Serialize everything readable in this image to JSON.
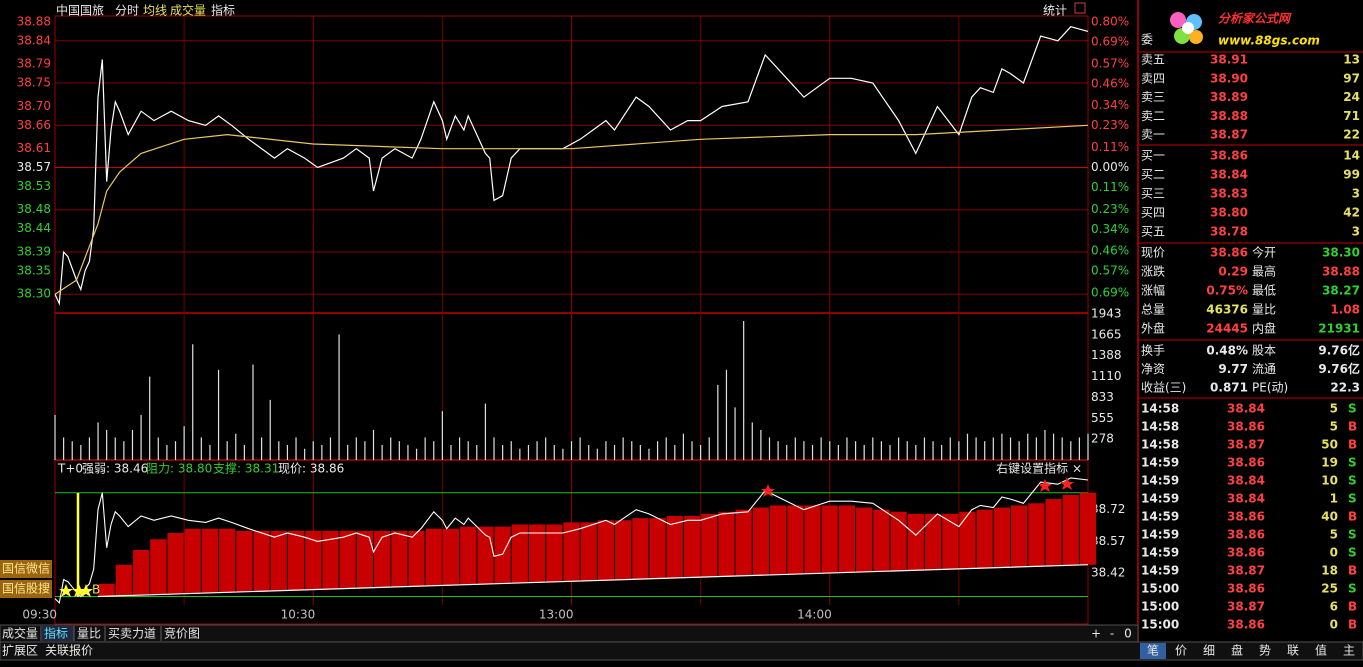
{
  "header": {
    "stats": "统计"
  },
  "chart_data": [
    {
      "type": "line",
      "title": "中国国旅",
      "xlim": [
        0,
        240
      ],
      "xticks": [
        {
          "value": 0,
          "label": "09:30"
        },
        {
          "value": 60,
          "label": "10:30"
        },
        {
          "value": 120,
          "label": "13:00"
        },
        {
          "value": 180,
          "label": "14:00"
        }
      ],
      "ylim": [
        38.26,
        38.88
      ],
      "yticks": [
        38.88,
        38.84,
        38.79,
        38.75,
        {
          "value": 38.7,
          "label": "38.70"
        },
        38.66,
        38.61,
        38.57,
        38.53,
        38.48,
        38.44,
        38.39,
        38.35,
        {
          "value": 38.3,
          "label": "38.30"
        }
      ],
      "y2lim": [
        -0.8,
        0.8
      ],
      "y2ticks": [
        {
          "value": 0.8,
          "label": "0.80%"
        },
        {
          "value": 0.69,
          "label": "0.69%"
        },
        {
          "value": 0.57,
          "label": "0.57%"
        },
        {
          "value": 0.46,
          "label": "0.46%"
        },
        {
          "value": 0.34,
          "label": "0.34%"
        },
        {
          "value": 0.23,
          "label": "0.23%"
        },
        {
          "value": 0.11,
          "label": "0.11%"
        },
        {
          "value": 0,
          "label": "0.00%"
        },
        {
          "value": -0.11,
          "label": "0.11%"
        },
        {
          "value": -0.23,
          "label": "0.23%"
        },
        {
          "value": -0.34,
          "label": "0.34%"
        },
        {
          "value": -0.46,
          "label": "0.46%"
        },
        {
          "value": -0.57,
          "label": "0.57%"
        },
        {
          "value": -0.69,
          "label": "0.69%"
        }
      ],
      "grid": true,
      "series": [
        {
          "name": "分时",
          "color": "#ffffff",
          "x": [
            0,
            1,
            2,
            3,
            5,
            6,
            7,
            8,
            9,
            10,
            11,
            12,
            13,
            14,
            15,
            17,
            20,
            23,
            27,
            31,
            35,
            38,
            41,
            45,
            51,
            54,
            58,
            61,
            67,
            70,
            73,
            74,
            76,
            79,
            83,
            85,
            88,
            90,
            91,
            93,
            95,
            96,
            100,
            101,
            102,
            104,
            106,
            108,
            115,
            118,
            122,
            125,
            128,
            130,
            135,
            138,
            143,
            147,
            150,
            155,
            161,
            165,
            170,
            174,
            177,
            180,
            185,
            190,
            196,
            200,
            205,
            210,
            213,
            215,
            218,
            220,
            222,
            225,
            229,
            233,
            236,
            240
          ],
          "values": [
            38.3,
            38.28,
            38.39,
            38.38,
            38.33,
            38.31,
            38.35,
            38.37,
            38.44,
            38.72,
            38.8,
            38.54,
            38.65,
            38.71,
            38.69,
            38.64,
            38.69,
            38.67,
            38.69,
            38.67,
            38.66,
            38.68,
            38.66,
            38.63,
            38.59,
            38.61,
            38.59,
            38.57,
            38.59,
            38.61,
            38.59,
            38.52,
            38.59,
            38.61,
            38.59,
            38.63,
            38.71,
            38.67,
            38.63,
            38.68,
            38.65,
            38.68,
            38.6,
            38.59,
            38.5,
            38.51,
            38.59,
            38.61,
            38.61,
            38.61,
            38.63,
            38.65,
            38.67,
            38.65,
            38.72,
            38.7,
            38.65,
            38.67,
            38.67,
            38.7,
            38.71,
            38.81,
            38.76,
            38.72,
            38.74,
            38.76,
            38.76,
            38.75,
            38.67,
            38.6,
            38.7,
            38.64,
            38.72,
            38.74,
            38.73,
            38.78,
            38.77,
            38.75,
            38.85,
            38.84,
            38.87,
            38.86
          ]
        },
        {
          "name": "均线",
          "color": "#e8c860",
          "x": [
            0,
            5,
            10,
            12,
            15,
            20,
            30,
            40,
            60,
            90,
            120,
            150,
            180,
            200,
            220,
            240
          ],
          "values": [
            38.3,
            38.33,
            38.45,
            38.52,
            38.56,
            38.6,
            38.63,
            38.64,
            38.62,
            38.61,
            38.61,
            38.63,
            38.64,
            38.64,
            38.65,
            38.66
          ]
        }
      ]
    },
    {
      "type": "bar",
      "title": "成交量",
      "color": "#e0e0e0",
      "xlim": [
        0,
        240
      ],
      "ylim": [
        0,
        1943
      ],
      "yticks": [
        1943,
        1665,
        1388,
        1110,
        833,
        555,
        278
      ],
      "x": [
        0,
        2,
        4,
        6,
        8,
        10,
        12,
        14,
        16,
        18,
        20,
        22,
        24,
        26,
        28,
        30,
        32,
        34,
        36,
        38,
        40,
        42,
        44,
        46,
        48,
        50,
        52,
        54,
        56,
        58,
        60,
        62,
        64,
        66,
        68,
        70,
        72,
        74,
        76,
        78,
        80,
        82,
        84,
        86,
        88,
        90,
        92,
        94,
        96,
        98,
        100,
        102,
        104,
        106,
        108,
        110,
        112,
        114,
        116,
        118,
        120,
        122,
        124,
        126,
        128,
        130,
        132,
        134,
        136,
        138,
        140,
        142,
        144,
        146,
        148,
        150,
        152,
        154,
        156,
        158,
        160,
        162,
        164,
        166,
        168,
        170,
        172,
        174,
        176,
        178,
        180,
        182,
        184,
        186,
        188,
        190,
        192,
        194,
        196,
        198,
        200,
        202,
        204,
        206,
        208,
        210,
        212,
        214,
        216,
        218,
        220,
        222,
        224,
        226,
        228,
        230,
        232,
        234,
        236,
        238,
        240
      ],
      "values": [
        600,
        300,
        250,
        200,
        300,
        500,
        400,
        300,
        250,
        400,
        600,
        1110,
        300,
        200,
        250,
        450,
        1540,
        300,
        200,
        1200,
        250,
        350,
        200,
        1270,
        300,
        800,
        250,
        200,
        300,
        150,
        250,
        200,
        300,
        1670,
        200,
        300,
        250,
        400,
        200,
        300,
        250,
        200,
        150,
        300,
        250,
        650,
        200,
        300,
        250,
        200,
        750,
        300,
        200,
        250,
        150,
        200,
        250,
        300,
        200,
        150,
        250,
        300,
        200,
        150,
        250,
        200,
        300,
        250,
        200,
        150,
        250,
        300,
        200,
        350,
        250,
        200,
        300,
        1000,
        1200,
        700,
        1850,
        500,
        400,
        300,
        250,
        200,
        300,
        250,
        200,
        300,
        250,
        200,
        300,
        250,
        200,
        300,
        250,
        200,
        300,
        250,
        200,
        300,
        250,
        200,
        300,
        250,
        350,
        300,
        250,
        300,
        350,
        300,
        250,
        350,
        300,
        400,
        350,
        300,
        250,
        300,
        350
      ]
    },
    {
      "type": "bar",
      "title": "指标",
      "prefix": "T+0",
      "strength": {
        "value": 38.46,
        "label": "强弱: 38.46"
      },
      "resistance": {
        "value": 38.8,
        "label": "阻力: 38.80"
      },
      "support": {
        "value": 38.31,
        "label": "支撑: 38.31"
      },
      "current": {
        "value": 38.86,
        "label": "现价: 38.86"
      },
      "hint": "右键设置指标 ×",
      "marker": "B",
      "xlim": [
        0,
        240
      ],
      "ylim": [
        38.27,
        38.945
      ],
      "yticks": [
        38.72,
        38.57,
        38.42
      ],
      "series": [
        {
          "color": "#c80000",
          "x": [
            12,
            16,
            20,
            24,
            28,
            32,
            36,
            40,
            44,
            48,
            52,
            56,
            60,
            64,
            68,
            72,
            76,
            80,
            84,
            88,
            92,
            96,
            100,
            104,
            108,
            112,
            116,
            120,
            124,
            128,
            132,
            136,
            140,
            144,
            148,
            152,
            156,
            160,
            164,
            168,
            172,
            176,
            180,
            184,
            188,
            192,
            196,
            200,
            204,
            208,
            212,
            216,
            220,
            224,
            228,
            232,
            236,
            240
          ],
          "values": [
            38.37,
            38.46,
            38.53,
            38.58,
            38.61,
            38.63,
            38.63,
            38.63,
            38.62,
            38.62,
            38.62,
            38.62,
            38.62,
            38.62,
            38.62,
            38.62,
            38.62,
            38.62,
            38.62,
            38.63,
            38.63,
            38.64,
            38.64,
            38.64,
            38.65,
            38.65,
            38.65,
            38.66,
            38.66,
            38.67,
            38.67,
            38.68,
            38.68,
            38.69,
            38.69,
            38.7,
            38.71,
            38.72,
            38.73,
            38.74,
            38.74,
            38.74,
            38.74,
            38.74,
            38.73,
            38.72,
            38.71,
            38.7,
            38.7,
            38.7,
            38.71,
            38.72,
            38.73,
            38.74,
            38.75,
            38.77,
            38.79,
            38.8
          ]
        },
        {
          "color": "#ffffff",
          "x": [
            10,
            240
          ],
          "values": [
            38.31,
            38.46
          ]
        }
      ]
    }
  ],
  "left_buttons": [
    "国信微信",
    "国信股搜"
  ],
  "bottom_tabs": [
    "成交量",
    "指标",
    "量比",
    "买卖力道",
    "竞价图"
  ],
  "bottom_controls": [
    "+",
    "-",
    "0"
  ],
  "bottom_tabs2": [
    "扩展区",
    "关联报价"
  ],
  "logo": {
    "title": "分析家公式网",
    "url": "www.88gs.com"
  },
  "order_book": {
    "label": "委",
    "asks": [
      [
        "卖五",
        "38.91",
        "13"
      ],
      [
        "卖四",
        "38.90",
        "97"
      ],
      [
        "卖三",
        "38.89",
        "24"
      ],
      [
        "卖二",
        "38.88",
        "71"
      ],
      [
        "卖一",
        "38.87",
        "22"
      ]
    ],
    "bids": [
      [
        "买一",
        "38.86",
        "14"
      ],
      [
        "买二",
        "38.84",
        "99"
      ],
      [
        "买三",
        "38.83",
        "3"
      ],
      [
        "买四",
        "38.80",
        "42"
      ],
      [
        "买五",
        "38.78",
        "3"
      ]
    ]
  },
  "quote": [
    [
      "现价",
      "38.86",
      "今开",
      "38.30"
    ],
    [
      "涨跌",
      "0.29",
      "最高",
      "38.88"
    ],
    [
      "涨幅",
      "0.75%",
      "最低",
      "38.27"
    ],
    [
      "总量",
      "46376",
      "量比",
      "1.08"
    ],
    [
      "外盘",
      "24445",
      "内盘",
      "21931"
    ]
  ],
  "finance": [
    [
      "换手",
      "0.48%",
      "股本",
      "9.76亿"
    ],
    [
      "净资",
      "9.77",
      "流通",
      "9.76亿"
    ],
    [
      "收益(三)",
      "0.871",
      "PE(动)",
      "22.3"
    ]
  ],
  "ticks": [
    [
      "14:58",
      "38.84",
      "5",
      "S"
    ],
    [
      "14:58",
      "38.86",
      "5",
      "B"
    ],
    [
      "14:58",
      "38.87",
      "50",
      "B"
    ],
    [
      "14:59",
      "38.86",
      "19",
      "S"
    ],
    [
      "14:59",
      "38.84",
      "10",
      "S"
    ],
    [
      "14:59",
      "38.84",
      "1",
      "S"
    ],
    [
      "14:59",
      "38.86",
      "40",
      "B"
    ],
    [
      "14:59",
      "38.86",
      "5",
      "S"
    ],
    [
      "14:59",
      "38.86",
      "0",
      "S"
    ],
    [
      "14:59",
      "38.87",
      "18",
      "B"
    ],
    [
      "15:00",
      "38.86",
      "25",
      "S"
    ],
    [
      "15:00",
      "38.87",
      "6",
      "B"
    ],
    [
      "15:00",
      "38.86",
      "0",
      "B"
    ]
  ],
  "right_tabs": [
    "笔",
    "价",
    "细",
    "盘",
    "势",
    "联",
    "值",
    "主"
  ]
}
